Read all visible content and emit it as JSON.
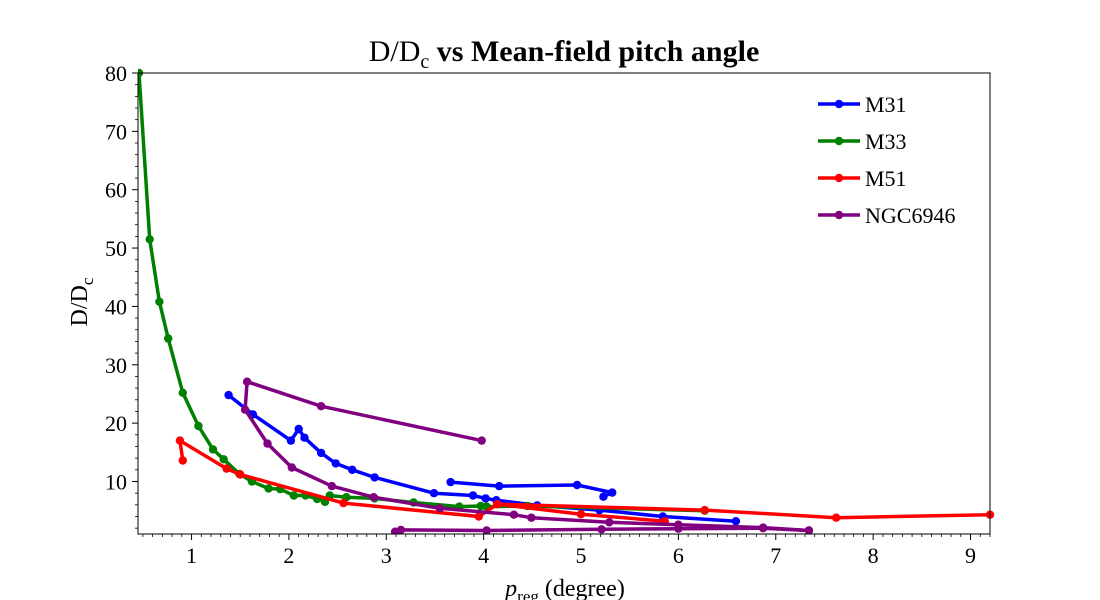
{
  "chart_data": {
    "type": "line",
    "title": {
      "main": "D/D",
      "sub": "c",
      "rest": " vs Mean-field pitch angle"
    },
    "xlabel": {
      "main": "p",
      "sub": "reg",
      "rest": " (degree)"
    },
    "ylabel": {
      "main": "D/D",
      "sub": "c"
    },
    "xlim": [
      0.45,
      9.2
    ],
    "ylim": [
      1,
      80
    ],
    "xticks": [
      1,
      2,
      3,
      4,
      5,
      6,
      7,
      8,
      9
    ],
    "yticks": [
      10,
      20,
      30,
      40,
      50,
      60,
      70,
      80
    ],
    "legend_position": "upper-right",
    "grid": false,
    "series": [
      {
        "name": "M31",
        "color": "#0000ff",
        "x": [
          1.38,
          1.63,
          2.02,
          2.1,
          2.16,
          2.33,
          2.48,
          2.65,
          2.88,
          3.49,
          3.89,
          4.02,
          4.13,
          4.55,
          5.19,
          5.84,
          6.59
        ],
        "y": [
          24.8,
          21.5,
          17.0,
          19.0,
          17.5,
          14.9,
          13.1,
          12.0,
          10.7,
          8.0,
          7.6,
          7.1,
          6.8,
          5.9,
          5.1,
          4.0,
          3.2
        ]
      },
      {
        "name": "M31",
        "color": "#0000ff",
        "x": [
          3.66,
          4.16,
          4.96,
          5.32,
          5.23
        ],
        "y": [
          9.9,
          9.2,
          9.4,
          8.1,
          7.4
        ]
      },
      {
        "name": "M33",
        "color": "#008000",
        "x": [
          0.46,
          0.57,
          0.67,
          0.76,
          0.91,
          1.07,
          1.22,
          1.33,
          1.49,
          1.62,
          1.79,
          1.91,
          2.05,
          2.17,
          2.29,
          2.37,
          2.42,
          2.59,
          2.88,
          3.28,
          3.75,
          3.97,
          4.03,
          4.45,
          6.27
        ],
        "y": [
          80.0,
          51.5,
          40.8,
          34.5,
          25.2,
          19.5,
          15.5,
          13.8,
          11.3,
          10.0,
          8.8,
          8.7,
          7.6,
          7.6,
          7.0,
          6.5,
          7.6,
          7.3,
          7.1,
          6.4,
          5.7,
          5.8,
          5.7,
          5.8,
          5.0
        ]
      },
      {
        "name": "M51",
        "color": "#ff0000",
        "x": [
          0.91,
          0.88,
          1.36,
          1.5,
          2.56,
          3.95,
          4.14,
          5.0,
          5.86
        ],
        "y": [
          13.6,
          17.0,
          12.2,
          11.2,
          6.3,
          4.0,
          6.1,
          4.4,
          3.2
        ]
      },
      {
        "name": "M51",
        "color": "#ff0000",
        "x": [
          4.14,
          6.27,
          7.62,
          9.2
        ],
        "y": [
          6.1,
          5.1,
          3.8,
          4.3
        ]
      },
      {
        "name": "NGC6946",
        "color": "#800080",
        "x": [
          3.98,
          2.33,
          1.57,
          1.55,
          1.78,
          2.03,
          2.44,
          2.87,
          3.55,
          4.31,
          4.49,
          5.29,
          6.0,
          6.87,
          7.34
        ],
        "y": [
          17.0,
          22.9,
          27.1,
          22.3,
          16.5,
          12.4,
          9.2,
          7.3,
          5.4,
          4.3,
          3.8,
          3.0,
          2.6,
          2.1,
          1.6
        ]
      },
      {
        "name": "NGC6946",
        "color": "#800080",
        "x": [
          3.09,
          3.15,
          4.03,
          5.21,
          6.0,
          6.87,
          7.34
        ],
        "y": [
          1.4,
          1.7,
          1.6,
          1.8,
          1.9,
          2.0,
          1.6
        ]
      }
    ]
  }
}
